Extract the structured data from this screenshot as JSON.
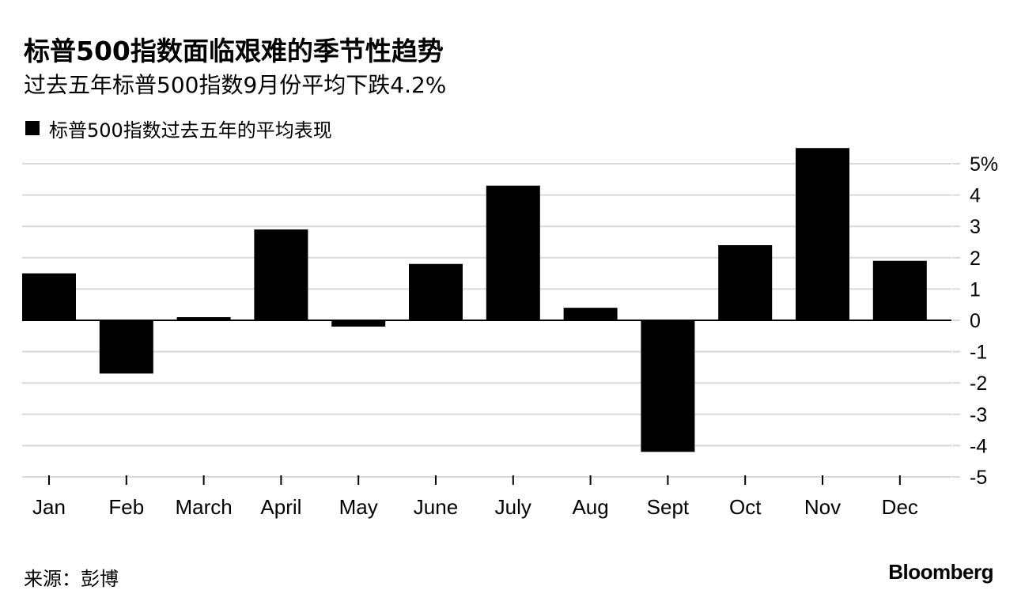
{
  "title": "标普500指数面临艰难的季节性趋势",
  "subtitle": "过去五年标普500指数9月份平均下跌4.2%",
  "source": "来源：彭博",
  "brand": "Bloomberg",
  "chart_data": {
    "type": "bar",
    "categories": [
      "Jan",
      "Feb",
      "March",
      "April",
      "May",
      "June",
      "July",
      "Aug",
      "Sept",
      "Oct",
      "Nov",
      "Dec"
    ],
    "series": [
      {
        "name": "标普500指数过去五年的平均表现",
        "values": [
          1.5,
          -1.7,
          0.1,
          2.9,
          -0.2,
          1.8,
          4.3,
          0.4,
          -4.2,
          2.4,
          5.5,
          1.9
        ]
      }
    ],
    "ylim": [
      -5,
      5
    ],
    "yticks": [
      5,
      4,
      3,
      2,
      1,
      0,
      -1,
      -2,
      -3,
      -4,
      -5
    ],
    "ytick_labels": [
      "5%",
      "4",
      "3",
      "2",
      "1",
      "0",
      "-1",
      "-2",
      "-3",
      "-4",
      "-5"
    ],
    "y_axis_side": "right",
    "grid": true,
    "legend": "top-left",
    "colors": {
      "bar": "#000000",
      "grid": "#d9d9d9",
      "zero_line": "#000000"
    }
  }
}
